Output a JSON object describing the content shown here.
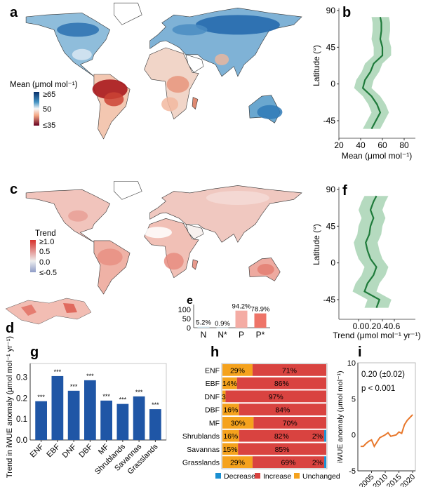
{
  "panel_labels": {
    "a": "a",
    "b": "b",
    "c": "c",
    "d": "d",
    "e": "e",
    "f": "f",
    "g": "g",
    "h": "h",
    "i": "i"
  },
  "colors": {
    "blue_bar": "#1f56a6",
    "red": "#d94340",
    "orange": "#f5a21d",
    "blue": "#1a8fd1",
    "green": "#1e7a3a",
    "green_band": "#a8d3b4",
    "line_orange": "#e8782c"
  },
  "chart_data": [
    {
      "id": "a",
      "type": "map",
      "legend_title": "Mean (μmol mol⁻¹)",
      "legend_ticks": [
        "≥65",
        "50",
        "≤35"
      ],
      "colormap": [
        "#08306b",
        "#2c7bb6",
        "#d1e5f0",
        "#f7f7f7",
        "#fddbc7",
        "#d6604d",
        "#67001f"
      ]
    },
    {
      "id": "b",
      "type": "line",
      "xlabel": "Mean (μmol mol⁻¹)",
      "ylabel": "Latitude (°)",
      "xlim": [
        20,
        90
      ],
      "ylim": [
        -60,
        95
      ],
      "xticks": [
        "20",
        "40",
        "60",
        "80"
      ],
      "xtick_values": [
        20,
        40,
        60,
        80
      ],
      "yticks": [
        "90",
        "45",
        "0",
        "-45"
      ],
      "ytick_values": [
        90,
        45,
        0,
        -45
      ],
      "latitude": [
        -55,
        -45,
        -35,
        -25,
        -15,
        -5,
        5,
        15,
        25,
        35,
        45,
        55,
        65,
        75,
        82
      ],
      "mean": [
        50,
        54,
        58,
        55,
        50,
        42,
        44,
        49,
        52,
        60,
        60,
        58,
        59,
        59,
        58
      ],
      "band": 8
    },
    {
      "id": "c",
      "type": "map",
      "legend_title": "Trend",
      "legend_ticks": [
        "≥1.0",
        "0.5",
        "0.0",
        "≤-0.5"
      ]
    },
    {
      "id": "e",
      "type": "bar",
      "categories": [
        "N",
        "N*",
        "P",
        "P*"
      ],
      "values": [
        5.2,
        0.9,
        94.2,
        78.9
      ],
      "labels": [
        "5.2%",
        "0.9%",
        "94.2%",
        "78.9%"
      ],
      "yticks": [
        "100",
        "50",
        "0"
      ],
      "ytick_values": [
        100,
        50,
        0
      ],
      "ylim": [
        0,
        120
      ],
      "bar_colors": [
        "#cfe6ee",
        "#cfe6ee",
        "#f4aca4",
        "#ee7468"
      ]
    },
    {
      "id": "f",
      "type": "line",
      "xlabel": "Trend (μmol mol⁻¹ yr⁻¹)",
      "ylabel": "Latitude (°)",
      "xlim": [
        -0.25,
        0.75
      ],
      "ylim": [
        -60,
        95
      ],
      "xticks": [
        "0.0",
        "0.2",
        "0.4",
        "0.6"
      ],
      "xtick_values": [
        0,
        0.2,
        0.4,
        0.6
      ],
      "yticks": [
        "90",
        "45",
        "0",
        "-45"
      ],
      "ytick_values": [
        90,
        45,
        0,
        -45
      ],
      "latitude": [
        -55,
        -45,
        -35,
        -25,
        -15,
        -5,
        5,
        15,
        25,
        35,
        45,
        55,
        65,
        75,
        82
      ],
      "trend": [
        0.3,
        0.35,
        0.1,
        0.15,
        0.25,
        0.3,
        0.2,
        0.15,
        0.12,
        0.18,
        0.2,
        0.25,
        0.2,
        0.25,
        0.3
      ],
      "band": 0.2
    },
    {
      "id": "g",
      "type": "bar",
      "ylabel": "Trend in iWUE anomaly (μmol mol⁻¹ yr⁻¹)",
      "categories": [
        "ENF",
        "EBF",
        "DNF",
        "DBF",
        "MF",
        "Shrublands",
        "Savannas",
        "Grasslands"
      ],
      "values": [
        0.185,
        0.305,
        0.235,
        0.285,
        0.188,
        0.172,
        0.208,
        0.147
      ],
      "significance": [
        "***",
        "***",
        "***",
        "***",
        "***",
        "***",
        "***",
        "***"
      ],
      "yticks": [
        "0.0",
        "0.1",
        "0.2",
        "0.3"
      ],
      "ytick_values": [
        0,
        0.1,
        0.2,
        0.3
      ],
      "ylim": [
        0,
        0.365
      ]
    },
    {
      "id": "h",
      "type": "bar",
      "orientation": "horizontal-stacked",
      "categories": [
        "ENF",
        "EBF",
        "DNF",
        "DBF",
        "MF",
        "Shrublands",
        "Savannas",
        "Grasslands"
      ],
      "series": [
        {
          "name": "Unchanged",
          "values": [
            29,
            14,
            3,
            16,
            30,
            16,
            15,
            29
          ],
          "labels": [
            "29%",
            "14%",
            "3%",
            "16%",
            "30%",
            "16%",
            "15%",
            "29%"
          ]
        },
        {
          "name": "Increase",
          "values": [
            71,
            86,
            97,
            84,
            70,
            82,
            85,
            69
          ],
          "labels": [
            "71%",
            "86%",
            "97%",
            "84%",
            "70%",
            "82%",
            "85%",
            "69%"
          ]
        },
        {
          "name": "Decrease",
          "values": [
            0,
            0,
            0,
            0,
            0,
            2,
            0,
            2
          ],
          "labels": [
            "",
            "",
            "",
            "",
            "",
            "2%",
            "",
            "2%"
          ]
        }
      ],
      "legend": [
        "Decrease",
        "Increase",
        "Unchanged"
      ]
    },
    {
      "id": "i",
      "type": "line",
      "ylabel": "iWUE anomaly (μmol mol⁻¹)",
      "annotation_1": "0.20 (±0.02)",
      "annotation_2": "p < 0.001",
      "x": [
        2001,
        2002,
        2003,
        2004,
        2005,
        2006,
        2007,
        2008,
        2009,
        2010,
        2011,
        2012,
        2013,
        2014,
        2015,
        2016,
        2017,
        2018,
        2019,
        2020
      ],
      "y": [
        -1.6,
        -1.6,
        -1.2,
        -0.9,
        -0.7,
        -1.6,
        -1.0,
        -0.4,
        -0.2,
        0.0,
        0.3,
        -0.2,
        -0.1,
        0.0,
        0.4,
        0.2,
        1.4,
        2.0,
        2.4,
        2.8
      ],
      "xlim": [
        2000,
        2021
      ],
      "ylim": [
        -5,
        10
      ],
      "xticks": [
        "2005",
        "2010",
        "2015",
        "2020"
      ],
      "xtick_values": [
        2005,
        2010,
        2015,
        2020
      ],
      "yticks": [
        "10",
        "5",
        "0",
        "-5"
      ],
      "ytick_values": [
        10,
        5,
        0,
        -5
      ]
    }
  ]
}
